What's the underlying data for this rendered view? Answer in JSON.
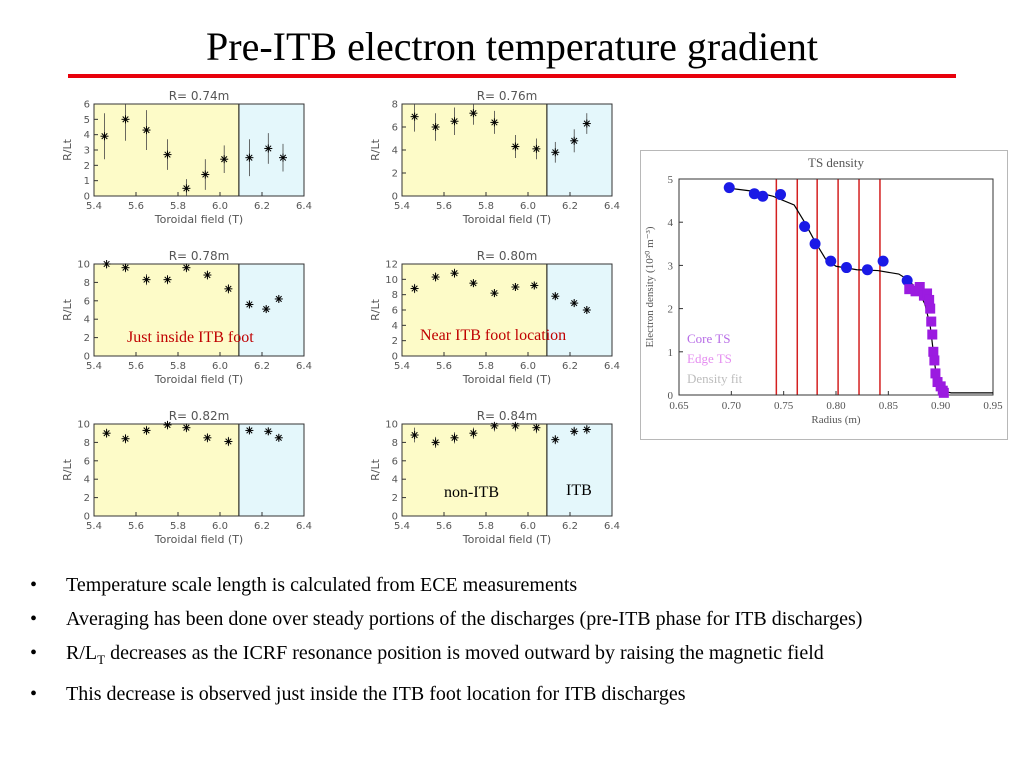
{
  "slide_title": "Pre-ITB electron temperature gradient",
  "colors": {
    "underline": "#e8000b",
    "non_itb_region": "#fdfbc8",
    "itb_region": "#e4f7fb",
    "core_ts": "#1a1ae6",
    "edge_ts": "#9b1be0",
    "fit_line": "#000000",
    "foot_lines": "#d42020"
  },
  "labels": {
    "just_inside": "Just inside ITB foot",
    "near_foot": "Near ITB foot location",
    "non_itb": "non-ITB",
    "itb": "ITB"
  },
  "chart_data": [
    {
      "type": "scatter",
      "title": "R=    0.74m",
      "xlabel": "Toroidal field (T)",
      "ylabel": "R/Lt",
      "xlim": [
        5.4,
        6.4
      ],
      "ylim": [
        0,
        6
      ],
      "xticks": [
        "5.4",
        "5.6",
        "5.8",
        "6.0",
        "6.2",
        "6.4"
      ],
      "yticks": [
        "0",
        "1",
        "2",
        "3",
        "4",
        "5",
        "6"
      ],
      "regions": {
        "non_itb": [
          5.4,
          6.09
        ],
        "itb": [
          6.09,
          6.4
        ]
      },
      "x": [
        5.45,
        5.55,
        5.65,
        5.75,
        5.84,
        5.93,
        6.02,
        6.14,
        6.23,
        6.3
      ],
      "y": [
        3.9,
        5.0,
        4.3,
        2.7,
        0.5,
        1.4,
        2.4,
        2.5,
        3.1,
        2.5
      ],
      "err": [
        1.5,
        1.4,
        1.3,
        1.0,
        0.6,
        1.0,
        0.9,
        1.2,
        1.0,
        0.9
      ]
    },
    {
      "type": "scatter",
      "title": "R=    0.76m",
      "xlabel": "Toroidal field (T)",
      "ylabel": "R/Lt",
      "xlim": [
        5.4,
        6.4
      ],
      "ylim": [
        0,
        8
      ],
      "xticks": [
        "5.4",
        "5.6",
        "5.8",
        "6.0",
        "6.2",
        "6.4"
      ],
      "yticks": [
        "0",
        "2",
        "4",
        "6",
        "8"
      ],
      "regions": {
        "non_itb": [
          5.4,
          6.09
        ],
        "itb": [
          6.09,
          6.4
        ]
      },
      "x": [
        5.46,
        5.56,
        5.65,
        5.74,
        5.84,
        5.94,
        6.04,
        6.13,
        6.22,
        6.28
      ],
      "y": [
        6.9,
        6.0,
        6.5,
        7.2,
        6.4,
        4.3,
        4.1,
        3.8,
        4.8,
        6.3
      ],
      "err": [
        1.3,
        1.2,
        1.2,
        1.0,
        1.0,
        1.0,
        0.9,
        0.9,
        1.0,
        0.9
      ]
    },
    {
      "type": "scatter",
      "title": "R=    0.78m",
      "xlabel": "Toroidal field (T)",
      "ylabel": "R/Lt",
      "xlim": [
        5.4,
        6.4
      ],
      "ylim": [
        0,
        10
      ],
      "xticks": [
        "5.4",
        "5.6",
        "5.8",
        "6.0",
        "6.2",
        "6.4"
      ],
      "yticks": [
        "0",
        "2",
        "4",
        "6",
        "8",
        "10"
      ],
      "regions": {
        "non_itb": [
          5.4,
          6.09
        ],
        "itb": [
          6.09,
          6.4
        ]
      },
      "x": [
        5.46,
        5.55,
        5.65,
        5.75,
        5.84,
        5.94,
        6.04,
        6.14,
        6.22,
        6.28
      ],
      "y": [
        10.0,
        9.6,
        8.3,
        8.3,
        9.6,
        8.8,
        7.3,
        5.6,
        5.1,
        6.2
      ],
      "err": [
        0.5,
        0.5,
        0.6,
        0.5,
        0.5,
        0.5,
        0.5,
        0.4,
        0.4,
        0.4
      ]
    },
    {
      "type": "scatter",
      "title": "R=    0.80m",
      "xlabel": "Toroidal field (T)",
      "ylabel": "R/Lt",
      "xlim": [
        5.4,
        6.4
      ],
      "ylim": [
        0,
        12
      ],
      "xticks": [
        "5.4",
        "5.6",
        "5.8",
        "6.0",
        "6.2",
        "6.4"
      ],
      "yticks": [
        "0",
        "2",
        "4",
        "6",
        "8",
        "10",
        "12"
      ],
      "regions": {
        "non_itb": [
          5.4,
          6.09
        ],
        "itb": [
          6.09,
          6.4
        ]
      },
      "x": [
        5.46,
        5.56,
        5.65,
        5.74,
        5.84,
        5.94,
        6.03,
        6.13,
        6.22,
        6.28
      ],
      "y": [
        8.8,
        10.3,
        10.8,
        9.5,
        8.2,
        9.0,
        9.2,
        7.8,
        6.9,
        6.0
      ],
      "err": [
        0.6,
        0.6,
        0.6,
        0.5,
        0.5,
        0.5,
        0.5,
        0.5,
        0.5,
        0.5
      ]
    },
    {
      "type": "scatter",
      "title": "R=    0.82m",
      "xlabel": "Toroidal field (T)",
      "ylabel": "R/Lt",
      "xlim": [
        5.4,
        6.4
      ],
      "ylim": [
        0,
        10
      ],
      "xticks": [
        "5.4",
        "5.6",
        "5.8",
        "6.0",
        "6.2",
        "6.4"
      ],
      "yticks": [
        "0",
        "2",
        "4",
        "6",
        "8",
        "10"
      ],
      "regions": {
        "non_itb": [
          5.4,
          6.09
        ],
        "itb": [
          6.09,
          6.4
        ]
      },
      "x": [
        5.46,
        5.55,
        5.65,
        5.75,
        5.84,
        5.94,
        6.04,
        6.14,
        6.23,
        6.28
      ],
      "y": [
        9.0,
        8.4,
        9.3,
        9.9,
        9.6,
        8.5,
        8.1,
        9.3,
        9.2,
        8.5
      ],
      "err": [
        0.5,
        0.5,
        0.5,
        0.5,
        0.5,
        0.5,
        0.5,
        0.4,
        0.4,
        0.4
      ]
    },
    {
      "type": "scatter",
      "title": "R=    0.84m",
      "xlabel": "Toroidal field (T)",
      "ylabel": "R/Lt",
      "xlim": [
        5.4,
        6.4
      ],
      "ylim": [
        0,
        10
      ],
      "xticks": [
        "5.4",
        "5.6",
        "5.8",
        "6.0",
        "6.2",
        "6.4"
      ],
      "yticks": [
        "0",
        "2",
        "4",
        "6",
        "8",
        "10"
      ],
      "regions": {
        "non_itb": [
          5.4,
          6.09
        ],
        "itb": [
          6.09,
          6.4
        ]
      },
      "x": [
        5.46,
        5.56,
        5.65,
        5.74,
        5.84,
        5.94,
        6.04,
        6.13,
        6.22,
        6.28
      ],
      "y": [
        8.8,
        8.0,
        8.5,
        9.0,
        9.8,
        9.8,
        9.6,
        8.3,
        9.2,
        9.4
      ],
      "err": [
        0.8,
        0.6,
        0.6,
        0.6,
        0.6,
        0.6,
        0.6,
        0.5,
        0.5,
        0.5
      ]
    },
    {
      "type": "line",
      "title": "TS density",
      "xlabel": "Radius (m)",
      "ylabel": "Electron density (10²⁰ m⁻³)",
      "xlim": [
        0.65,
        0.95
      ],
      "ylim": [
        0,
        5
      ],
      "xticks": [
        "0.65",
        "0.70",
        "0.75",
        "0.80",
        "0.85",
        "0.90",
        "0.95"
      ],
      "yticks": [
        "0",
        "1",
        "2",
        "3",
        "4",
        "5"
      ],
      "legend": [
        {
          "name": "Core TS",
          "color": "#b76ce6"
        },
        {
          "name": "Edge TS",
          "color": "#e58ef0"
        },
        {
          "name": "Density fit",
          "color": "#bdbdbd"
        }
      ],
      "legend_position": "bottom-left",
      "core_ts": {
        "x": [
          0.698,
          0.722,
          0.73,
          0.747,
          0.77,
          0.78,
          0.795,
          0.81,
          0.83,
          0.845,
          0.868
        ],
        "y": [
          4.8,
          4.66,
          4.6,
          4.64,
          3.9,
          3.5,
          3.1,
          2.95,
          2.9,
          3.1,
          2.65
        ]
      },
      "edge_ts": {
        "x": [
          0.87,
          0.876,
          0.88,
          0.884,
          0.887,
          0.889,
          0.89,
          0.891,
          0.892,
          0.893,
          0.894,
          0.895,
          0.897,
          0.9,
          0.902,
          0.903
        ],
        "y": [
          2.45,
          2.4,
          2.5,
          2.3,
          2.35,
          2.2,
          2.0,
          1.7,
          1.4,
          1.0,
          0.8,
          0.5,
          0.3,
          0.2,
          0.1,
          0.05
        ]
      },
      "fit": {
        "x": [
          0.7,
          0.72,
          0.74,
          0.76,
          0.77,
          0.78,
          0.79,
          0.8,
          0.82,
          0.84,
          0.86,
          0.87,
          0.88,
          0.885,
          0.89,
          0.893,
          0.896,
          0.9,
          0.91,
          0.95
        ],
        "y": [
          4.78,
          4.72,
          4.6,
          4.4,
          4.0,
          3.55,
          3.15,
          2.98,
          2.9,
          2.88,
          2.8,
          2.65,
          2.35,
          2.1,
          1.6,
          1.0,
          0.4,
          0.1,
          0.05,
          0.05
        ]
      },
      "vertical_lines_x": [
        0.743,
        0.763,
        0.782,
        0.802,
        0.822,
        0.842
      ]
    }
  ],
  "bullets": [
    {
      "text": "Temperature scale length is calculated from ECE measurements"
    },
    {
      "text": "Averaging has been done over steady portions of the discharges (pre-ITB phase for ITB discharges)"
    },
    {
      "pre": "R/L",
      "sub": "T",
      "post": " decreases as the ICRF resonance position is moved outward by raising the magnetic field"
    },
    {
      "text": "This decrease is observed just inside the ITB foot location for ITB discharges"
    }
  ],
  "bullet_symbol": "•"
}
